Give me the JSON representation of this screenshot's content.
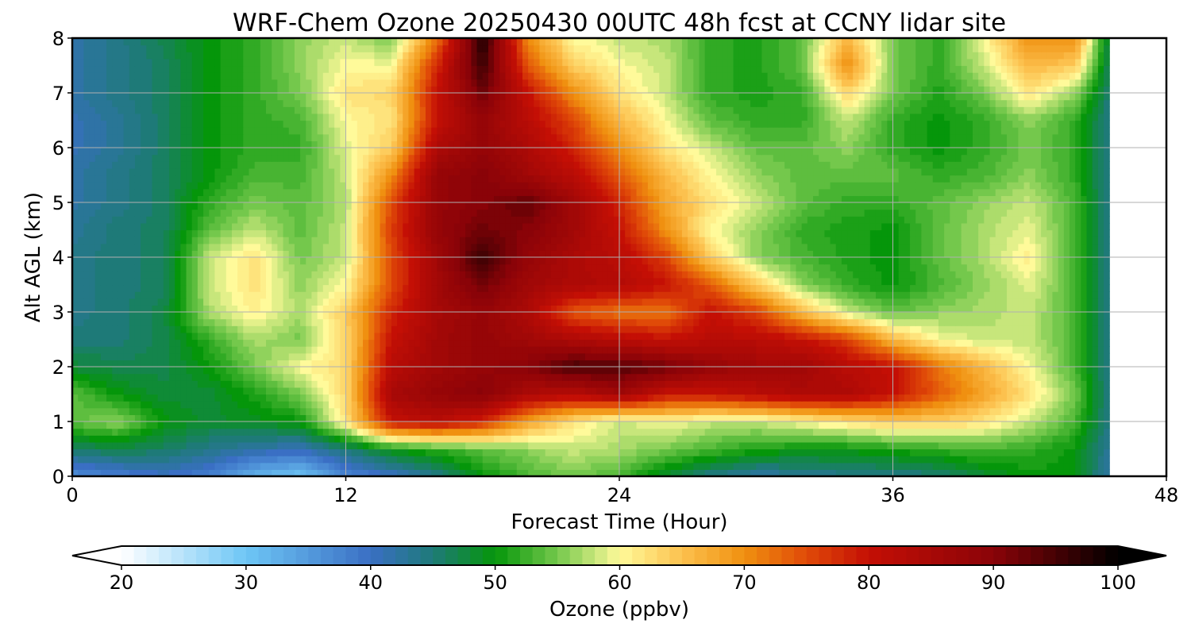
{
  "chart_data": {
    "type": "heatmap",
    "title": "WRF-Chem Ozone  20250430 00UTC 48h fcst at CCNY lidar site",
    "xlabel": "Forecast Time (Hour)",
    "ylabel": "Alt AGL (km)",
    "xlim": [
      0,
      48
    ],
    "ylim": [
      0,
      8
    ],
    "xticks": [
      "0",
      "12",
      "24",
      "36",
      "48"
    ],
    "yticks": [
      "0",
      "1",
      "2",
      "3",
      "4",
      "5",
      "6",
      "7",
      "8"
    ],
    "grid": true,
    "data_extent_hours": 45.5,
    "colorbar": {
      "label": "Ozone  (ppbv)",
      "ticks": [
        "20",
        "30",
        "40",
        "50",
        "60",
        "70",
        "80",
        "90",
        "100"
      ],
      "range": [
        20,
        100
      ],
      "extend": "both",
      "stops": [
        {
          "value": 20,
          "color": "#ffffff"
        },
        {
          "value": 30,
          "color": "#6ec6f5"
        },
        {
          "value": 40,
          "color": "#3a6fc4"
        },
        {
          "value": 45,
          "color": "#1e7a78"
        },
        {
          "value": 50,
          "color": "#05960a"
        },
        {
          "value": 55,
          "color": "#74c84c"
        },
        {
          "value": 60,
          "color": "#fffa9a"
        },
        {
          "value": 65,
          "color": "#fcc14e"
        },
        {
          "value": 70,
          "color": "#f09010"
        },
        {
          "value": 75,
          "color": "#e04a08"
        },
        {
          "value": 80,
          "color": "#c40f05"
        },
        {
          "value": 90,
          "color": "#8a0308"
        },
        {
          "value": 100,
          "color": "#000000"
        }
      ]
    },
    "x_hours": [
      0,
      2,
      4,
      6,
      8,
      10,
      12,
      14,
      16,
      18,
      20,
      22,
      24,
      26,
      28,
      30,
      32,
      34,
      36,
      38,
      40,
      42,
      44,
      45.5
    ],
    "y_km": [
      0,
      0.5,
      1,
      1.5,
      2,
      2.5,
      3,
      3.5,
      4,
      4.5,
      5,
      5.5,
      6,
      6.5,
      7,
      7.5,
      8
    ],
    "values": [
      [
        36,
        38,
        40,
        38,
        32,
        30,
        37,
        40,
        44,
        50,
        53,
        55,
        53,
        48,
        44,
        42,
        43,
        44,
        44,
        45,
        48,
        50,
        50,
        42
      ],
      [
        46,
        47,
        46,
        44,
        42,
        41,
        45,
        50,
        52,
        54,
        56,
        58,
        57,
        55,
        53,
        51,
        50,
        50,
        51,
        52,
        53,
        52,
        50,
        43
      ],
      [
        54,
        56,
        50,
        48,
        49,
        50,
        62,
        80,
        82,
        78,
        68,
        62,
        58,
        60,
        58,
        58,
        60,
        62,
        64,
        64,
        62,
        58,
        53,
        44
      ],
      [
        54,
        50,
        48,
        48,
        51,
        55,
        63,
        85,
        88,
        90,
        84,
        82,
        86,
        80,
        80,
        82,
        84,
        84,
        80,
        74,
        68,
        62,
        55,
        44
      ],
      [
        48,
        47,
        47,
        50,
        55,
        60,
        63,
        82,
        86,
        88,
        90,
        95,
        94,
        92,
        88,
        86,
        86,
        82,
        80,
        72,
        66,
        60,
        53,
        44
      ],
      [
        45,
        45,
        47,
        52,
        57,
        55,
        63,
        80,
        86,
        88,
        86,
        84,
        82,
        80,
        82,
        82,
        80,
        76,
        66,
        60,
        58,
        58,
        53,
        44
      ],
      [
        44,
        45,
        47,
        57,
        61,
        57,
        64,
        78,
        85,
        88,
        84,
        74,
        72,
        72,
        80,
        76,
        66,
        58,
        54,
        56,
        57,
        58,
        53,
        44
      ],
      [
        44,
        45,
        46,
        58,
        62,
        56,
        60,
        75,
        86,
        92,
        86,
        84,
        83,
        80,
        74,
        64,
        56,
        52,
        50,
        53,
        56,
        59,
        53,
        44
      ],
      [
        44,
        45,
        46,
        58,
        62,
        55,
        58,
        75,
        86,
        96,
        88,
        84,
        82,
        76,
        64,
        56,
        53,
        51,
        50,
        54,
        57,
        61,
        53,
        44
      ],
      [
        43,
        45,
        46,
        54,
        58,
        54,
        58,
        76,
        88,
        92,
        90,
        86,
        80,
        70,
        60,
        56,
        52,
        51,
        50,
        54,
        57,
        59,
        53,
        44
      ],
      [
        42,
        44,
        46,
        52,
        55,
        54,
        57,
        75,
        88,
        90,
        93,
        86,
        78,
        68,
        62,
        58,
        54,
        52,
        52,
        54,
        56,
        58,
        53,
        44
      ],
      [
        42,
        44,
        46,
        50,
        53,
        53,
        58,
        70,
        88,
        90,
        86,
        82,
        74,
        66,
        60,
        56,
        54,
        54,
        54,
        52,
        53,
        56,
        52,
        44
      ],
      [
        41,
        43,
        46,
        50,
        52,
        52,
        59,
        64,
        84,
        88,
        84,
        78,
        70,
        62,
        58,
        54,
        54,
        56,
        52,
        50,
        52,
        55,
        52,
        44
      ],
      [
        41,
        43,
        46,
        50,
        52,
        53,
        60,
        62,
        80,
        88,
        82,
        75,
        66,
        60,
        54,
        52,
        52,
        58,
        52,
        50,
        52,
        56,
        52,
        44
      ],
      [
        42,
        44,
        46,
        50,
        52,
        55,
        62,
        63,
        80,
        92,
        80,
        70,
        62,
        58,
        52,
        51,
        52,
        63,
        55,
        51,
        55,
        62,
        56,
        45
      ],
      [
        42,
        44,
        46,
        50,
        52,
        56,
        60,
        60,
        78,
        96,
        74,
        64,
        60,
        58,
        52,
        51,
        54,
        70,
        55,
        52,
        58,
        66,
        64,
        46
      ],
      [
        42,
        44,
        47,
        50,
        52,
        56,
        58,
        55,
        72,
        98,
        70,
        60,
        58,
        57,
        52,
        51,
        54,
        66,
        55,
        52,
        60,
        70,
        70,
        47
      ]
    ]
  }
}
